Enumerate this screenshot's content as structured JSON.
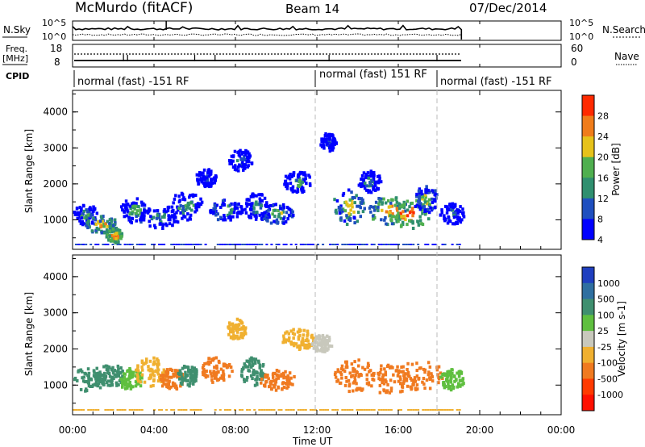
{
  "header": {
    "station": "McMurdo (fitACF)",
    "beam": "Beam 14",
    "date": "07/Dec/2014"
  },
  "sky_panel": {
    "left_label": "N.Sky",
    "right_label": "N.Search",
    "left_ticks": [
      "10^5",
      "10^0"
    ],
    "right_ticks": [
      "10^5",
      "10^0"
    ]
  },
  "freq_panel": {
    "left_label_1": "Freq.",
    "left_label_2": "[MHz]",
    "left_ticks": [
      "18",
      "8"
    ],
    "right_ticks": [
      "60",
      "0"
    ],
    "right_label": "Nave"
  },
  "cpid": {
    "label": "CPID",
    "segments": [
      {
        "start_hour": 0,
        "end_hour": 12,
        "text": "normal (fast) -151 RF"
      },
      {
        "start_hour": 12,
        "end_hour": 18,
        "text": "normal (fast) 151 RF"
      },
      {
        "start_hour": 18,
        "end_hour": 24,
        "text": "normal (fast) -151 RF"
      }
    ]
  },
  "x_axis": {
    "label": "Time UT",
    "ticks": [
      "00:00",
      "04:00",
      "08:00",
      "12:00",
      "16:00",
      "20:00",
      "00:00"
    ]
  },
  "chart_data": [
    {
      "type": "heatmap",
      "name": "power",
      "ylabel": "Slant Range [km]",
      "y_ticks": [
        "1000",
        "2000",
        "3000",
        "4000"
      ],
      "ylim": [
        180,
        4600
      ],
      "xlim_hours": [
        0,
        24
      ],
      "colorbar_label": "Power [dB]",
      "colorbar_ticks": [
        "4",
        "8",
        "12",
        "16",
        "20",
        "24",
        "28"
      ],
      "colorbar_colors": [
        "#0000ff",
        "#1f4fbf",
        "#2f8f6f",
        "#4faf4f",
        "#e6c21a",
        "#f07c1a",
        "#ff2a00"
      ],
      "blobs": [
        {
          "t": 0.6,
          "r": 1200,
          "dt": 0.6,
          "dr": 300,
          "v": 14
        },
        {
          "t": 1.4,
          "r": 900,
          "dt": 0.8,
          "dr": 250,
          "v": 22
        },
        {
          "t": 2.0,
          "r": 600,
          "dt": 0.4,
          "dr": 200,
          "v": 26
        },
        {
          "t": 3.0,
          "r": 1300,
          "dt": 0.7,
          "dr": 350,
          "v": 16
        },
        {
          "t": 4.2,
          "r": 1100,
          "dt": 1.0,
          "dr": 300,
          "v": 12
        },
        {
          "t": 5.5,
          "r": 1400,
          "dt": 0.9,
          "dr": 400,
          "v": 14
        },
        {
          "t": 6.5,
          "r": 2200,
          "dt": 0.5,
          "dr": 250,
          "v": 8
        },
        {
          "t": 7.5,
          "r": 1300,
          "dt": 0.8,
          "dr": 300,
          "v": 16
        },
        {
          "t": 8.2,
          "r": 2700,
          "dt": 0.6,
          "dr": 300,
          "v": 10
        },
        {
          "t": 9.0,
          "r": 1400,
          "dt": 0.6,
          "dr": 400,
          "v": 12
        },
        {
          "t": 10.0,
          "r": 1200,
          "dt": 0.8,
          "dr": 300,
          "v": 18
        },
        {
          "t": 11.0,
          "r": 2100,
          "dt": 0.7,
          "dr": 300,
          "v": 14
        },
        {
          "t": 12.5,
          "r": 3200,
          "dt": 0.4,
          "dr": 250,
          "v": 8
        },
        {
          "t": 13.5,
          "r": 1400,
          "dt": 0.8,
          "dr": 500,
          "v": 20
        },
        {
          "t": 14.5,
          "r": 2100,
          "dt": 0.6,
          "dr": 300,
          "v": 12
        },
        {
          "t": 15.5,
          "r": 1300,
          "dt": 1.0,
          "dr": 400,
          "v": 24
        },
        {
          "t": 16.5,
          "r": 1200,
          "dt": 1.0,
          "dr": 400,
          "v": 26
        },
        {
          "t": 17.3,
          "r": 1600,
          "dt": 0.6,
          "dr": 400,
          "v": 18
        },
        {
          "t": 18.6,
          "r": 1200,
          "dt": 0.6,
          "dr": 300,
          "v": 10
        }
      ]
    },
    {
      "type": "heatmap",
      "name": "velocity",
      "ylabel": "Slant Range [km]",
      "y_ticks": [
        "1000",
        "2000",
        "3000",
        "4000"
      ],
      "ylim": [
        180,
        4600
      ],
      "xlim_hours": [
        0,
        24
      ],
      "colorbar_label": "Velocity [m s-1]",
      "colorbar_ticks": [
        "1000",
        "500",
        "100",
        "25",
        "-25",
        "-100",
        "-500",
        "-1000"
      ],
      "colorbar_colors": [
        "#1f3fbf",
        "#2f6fa0",
        "#3f8f6f",
        "#5fbf3f",
        "#c8c8bc",
        "#f0b030",
        "#f07a20",
        "#ff3a00",
        "#ff1000"
      ],
      "blobs": [
        {
          "t": 0.8,
          "r": 1200,
          "dt": 0.8,
          "dr": 350,
          "v": 100
        },
        {
          "t": 1.8,
          "r": 1300,
          "dt": 0.8,
          "dr": 300,
          "v": 100
        },
        {
          "t": 2.8,
          "r": 1200,
          "dt": 0.6,
          "dr": 300,
          "v": 25
        },
        {
          "t": 3.8,
          "r": 1400,
          "dt": 0.8,
          "dr": 400,
          "v": -100
        },
        {
          "t": 4.8,
          "r": 1200,
          "dt": 0.6,
          "dr": 300,
          "v": -500
        },
        {
          "t": 5.6,
          "r": 1300,
          "dt": 0.5,
          "dr": 300,
          "v": 100
        },
        {
          "t": 7.0,
          "r": 1500,
          "dt": 0.8,
          "dr": 400,
          "v": -500
        },
        {
          "t": 8.0,
          "r": 2600,
          "dt": 0.5,
          "dr": 300,
          "v": -100
        },
        {
          "t": 8.8,
          "r": 1400,
          "dt": 0.6,
          "dr": 400,
          "v": 100
        },
        {
          "t": 10.0,
          "r": 1200,
          "dt": 0.9,
          "dr": 300,
          "v": -500
        },
        {
          "t": 11.0,
          "r": 2300,
          "dt": 0.8,
          "dr": 300,
          "v": -100
        },
        {
          "t": 12.2,
          "r": 2200,
          "dt": 0.5,
          "dr": 250,
          "v": 0
        },
        {
          "t": 13.8,
          "r": 1300,
          "dt": 1.0,
          "dr": 450,
          "v": -500
        },
        {
          "t": 15.5,
          "r": 1200,
          "dt": 1.2,
          "dr": 400,
          "v": -500
        },
        {
          "t": 17.0,
          "r": 1300,
          "dt": 1.2,
          "dr": 400,
          "v": -500
        },
        {
          "t": 18.6,
          "r": 1200,
          "dt": 0.6,
          "dr": 300,
          "v": 25
        }
      ]
    }
  ]
}
